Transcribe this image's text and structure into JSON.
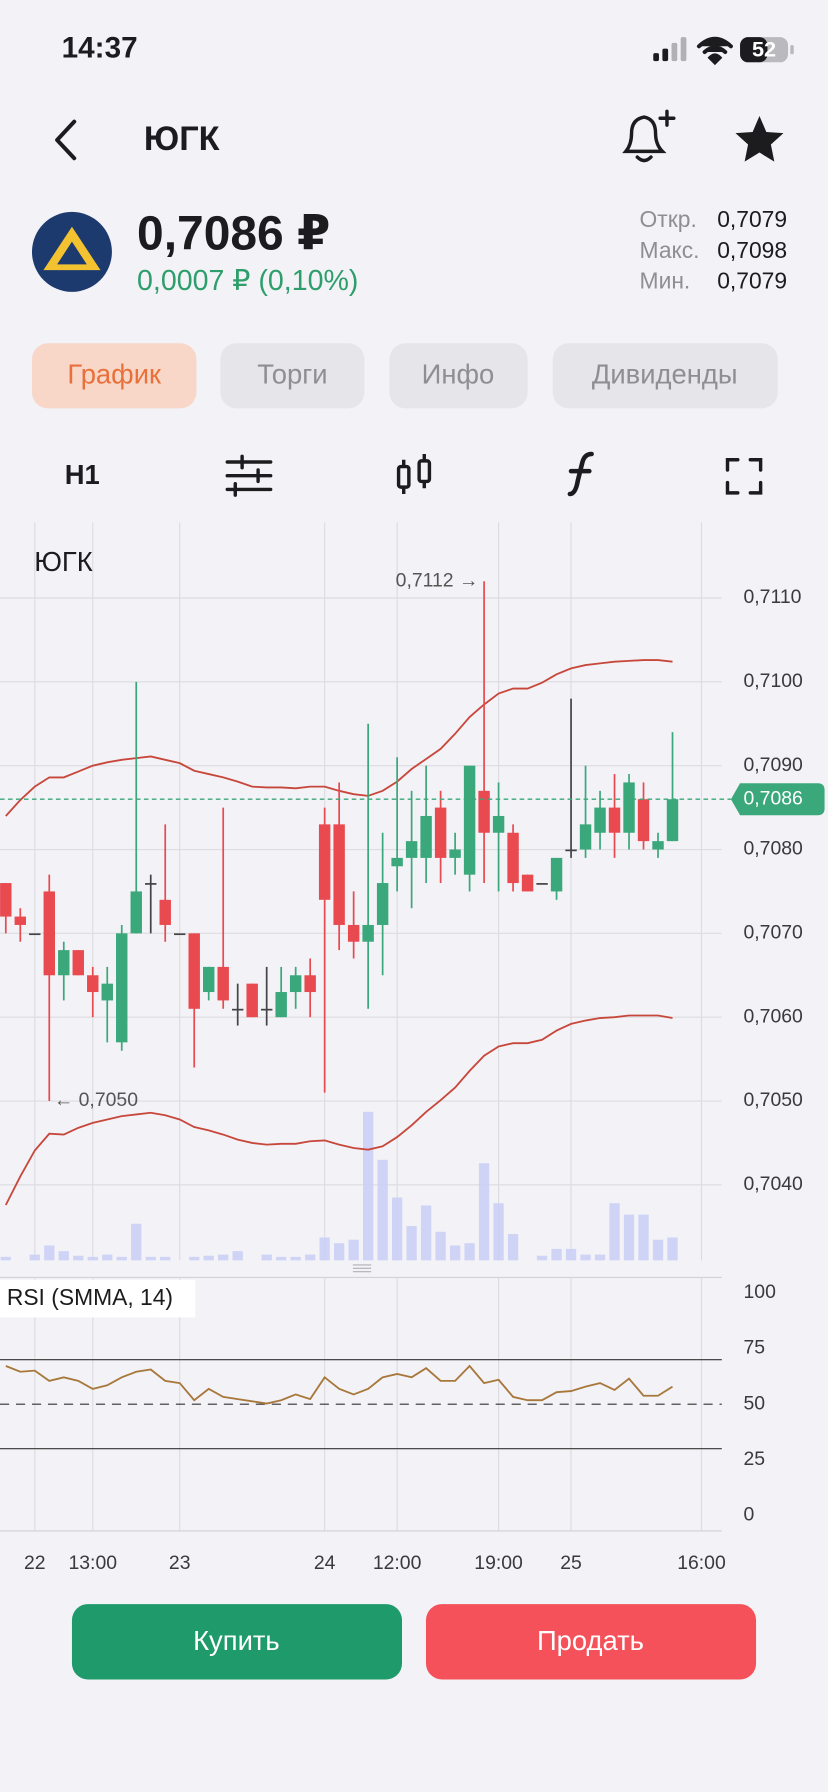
{
  "status_bar": {
    "time": "14:37",
    "battery": "52"
  },
  "header": {
    "title": "ЮГК"
  },
  "quote": {
    "price": "0,7086 ₽",
    "change": "0,0007 ₽ (0,10%)",
    "stats": [
      {
        "label": "Откр.",
        "value": "0,7079"
      },
      {
        "label": "Макс.",
        "value": "0,7098"
      },
      {
        "label": "Мин.",
        "value": "0,7079"
      }
    ]
  },
  "tabs": [
    "График",
    "Торги",
    "Инфо",
    "Дивиденды"
  ],
  "toolbar": {
    "interval": "H1"
  },
  "buttons": {
    "buy": "Купить",
    "sell": "Продать"
  },
  "chart_data": [
    {
      "type": "candlestick",
      "title": "ЮГК",
      "categories": [
        null,
        null,
        null,
        null,
        null,
        null,
        null,
        null,
        null,
        null,
        null,
        null,
        null,
        null,
        null,
        null,
        null,
        null,
        null,
        null,
        null,
        null,
        null,
        null,
        null,
        null,
        null,
        null,
        null,
        null,
        null,
        null,
        null,
        null,
        null,
        null,
        null,
        null,
        null,
        null,
        null,
        null,
        null,
        null,
        null,
        null,
        null
      ],
      "open": [
        0.7076,
        0.7072,
        0.707,
        0.7075,
        0.7065,
        0.7068,
        0.7065,
        0.7062,
        0.7057,
        0.707,
        0.7076,
        0.7074,
        0.707,
        0.707,
        0.7063,
        0.7066,
        0.7061,
        0.7064,
        0.7061,
        0.706,
        0.7063,
        0.7065,
        0.7083,
        0.7083,
        0.7071,
        0.7069,
        0.7071,
        0.7078,
        0.7079,
        0.7079,
        0.7085,
        0.7079,
        0.7077,
        0.7087,
        0.7082,
        0.7082,
        0.7077,
        0.7076,
        0.7075,
        0.708,
        0.708,
        0.7082,
        0.7085,
        0.7082,
        0.7086,
        0.708,
        0.7081
      ],
      "high": [
        0.7076,
        0.7073,
        0.707,
        0.7077,
        0.7069,
        0.7068,
        0.7066,
        0.7066,
        0.7071,
        0.71,
        0.7077,
        0.7083,
        0.707,
        0.707,
        0.7066,
        0.7085,
        0.7064,
        0.7064,
        0.7066,
        0.7066,
        0.7066,
        0.7067,
        0.7085,
        0.7088,
        0.7075,
        0.7095,
        0.7082,
        0.7091,
        0.7087,
        0.709,
        0.7087,
        0.7082,
        0.709,
        0.7112,
        0.7088,
        0.7083,
        0.7077,
        0.7076,
        0.7079,
        0.7098,
        0.709,
        0.7087,
        0.7089,
        0.7089,
        0.7088,
        0.7082,
        0.7094
      ],
      "low": [
        0.707,
        0.7069,
        0.707,
        0.705,
        0.7062,
        0.7065,
        0.706,
        0.7057,
        0.7056,
        0.707,
        0.707,
        0.7069,
        0.707,
        0.7054,
        0.7062,
        0.7061,
        0.7059,
        0.706,
        0.7059,
        0.706,
        0.7061,
        0.706,
        0.7051,
        0.7068,
        0.7067,
        0.7061,
        0.7065,
        0.7075,
        0.7073,
        0.7076,
        0.7076,
        0.7077,
        0.7075,
        0.7076,
        0.7075,
        0.7075,
        0.7075,
        0.7076,
        0.7074,
        0.7079,
        0.7079,
        0.708,
        0.7079,
        0.708,
        0.708,
        0.7079,
        0.7081
      ],
      "close": [
        0.7072,
        0.7071,
        0.707,
        0.7065,
        0.7068,
        0.7065,
        0.7063,
        0.7064,
        0.707,
        0.7075,
        0.7076,
        0.7071,
        0.707,
        0.7061,
        0.7066,
        0.7062,
        0.7061,
        0.706,
        0.7061,
        0.7063,
        0.7065,
        0.7063,
        0.7074,
        0.7071,
        0.7069,
        0.7071,
        0.7076,
        0.7079,
        0.7081,
        0.7084,
        0.7079,
        0.708,
        0.709,
        0.7082,
        0.7084,
        0.7076,
        0.7075,
        0.7076,
        0.7079,
        0.708,
        0.7083,
        0.7085,
        0.7082,
        0.7088,
        0.7081,
        0.7081,
        0.7086
      ],
      "up_color": "#3aa87a",
      "down_color": "#e84a4f",
      "flat_color": "#444444",
      "series": [
        {
          "color": "#c8473b",
          "values": [
            0.7084,
            0.70859,
            0.70875,
            0.70886,
            0.70886,
            0.70893,
            0.709,
            0.70904,
            0.70907,
            0.70909,
            0.70911,
            0.70907,
            0.70903,
            0.70894,
            0.7089,
            0.70886,
            0.70881,
            0.70875,
            0.70874,
            0.70874,
            0.70873,
            0.70875,
            0.70875,
            0.7087,
            0.70866,
            0.70864,
            0.7087,
            0.70881,
            0.70896,
            0.70908,
            0.7092,
            0.70938,
            0.70958,
            0.70973,
            0.70986,
            0.70992,
            0.70992,
            0.70999,
            0.71009,
            0.71016,
            0.7102,
            0.71022,
            0.71024,
            0.71025,
            0.71026,
            0.71026,
            0.71024
          ]
        },
        {
          "color": "#c8473b",
          "values": [
            0.70376,
            0.7041,
            0.70441,
            0.70461,
            0.7046,
            0.70468,
            0.70474,
            0.70478,
            0.70482,
            0.70484,
            0.70486,
            0.70483,
            0.70478,
            0.70469,
            0.70465,
            0.7046,
            0.70454,
            0.7045,
            0.70448,
            0.70449,
            0.70449,
            0.70452,
            0.70453,
            0.70448,
            0.70444,
            0.70442,
            0.70446,
            0.70457,
            0.70471,
            0.70487,
            0.70501,
            0.70516,
            0.70536,
            0.70554,
            0.70565,
            0.70569,
            0.70569,
            0.70573,
            0.70584,
            0.70592,
            0.70596,
            0.70599,
            0.706,
            0.70602,
            0.70602,
            0.70602,
            0.70599
          ]
        }
      ],
      "volume": {
        "color": "#c9cef5",
        "ylim": [
          0,
          150
        ],
        "values": [
          3,
          0,
          5,
          13,
          8,
          4,
          3,
          5,
          3,
          32,
          3,
          3,
          0,
          3,
          4,
          5,
          8,
          0,
          5,
          3,
          3,
          5,
          20,
          15,
          18,
          130,
          88,
          55,
          30,
          48,
          25,
          13,
          15,
          85,
          50,
          23,
          0,
          4,
          10,
          10,
          5,
          5,
          50,
          40,
          40,
          18,
          20
        ]
      },
      "xlim": [
        -0.4,
        49.4
      ],
      "ylim": [
        0.7031,
        0.7119
      ],
      "yticks": [
        {
          "value": 0.704,
          "label": "0,7040"
        },
        {
          "value": 0.705,
          "label": "0,7050"
        },
        {
          "value": 0.706,
          "label": "0,7060"
        },
        {
          "value": 0.707,
          "label": "0,7070"
        },
        {
          "value": 0.708,
          "label": "0,7080"
        },
        {
          "value": 0.709,
          "label": "0,7090"
        },
        {
          "value": 0.71,
          "label": "0,7100"
        },
        {
          "value": 0.711,
          "label": "0,7110"
        }
      ],
      "grid": true,
      "last_price": {
        "value": 0.7086,
        "label": "0,7086",
        "color": "#3aa87a"
      },
      "annotations": [
        {
          "value": 0.7112,
          "label": "0,7112 →"
        },
        {
          "value": 0.705,
          "label": "← 0,7050"
        }
      ]
    },
    {
      "type": "line",
      "title": "RSI (SMMA, 14)",
      "color": "#a8773a",
      "categories": [
        null,
        null,
        null,
        null,
        null,
        null,
        null,
        null,
        null,
        null,
        null,
        null,
        null,
        null,
        null,
        null,
        null,
        null,
        null,
        null,
        null,
        null,
        null,
        null,
        null,
        null,
        null,
        null,
        null,
        null,
        null,
        null,
        null,
        null,
        null,
        null,
        null,
        null,
        null,
        null,
        null,
        null,
        null,
        null,
        null,
        null,
        null
      ],
      "values": [
        67.2,
        64.6,
        65.1,
        60.5,
        62.1,
        60.5,
        56.9,
        58.5,
        62.1,
        64.6,
        65.6,
        60.5,
        59.5,
        51.8,
        56.9,
        53.3,
        52.3,
        51.3,
        50.3,
        51.8,
        54.4,
        52.3,
        62.1,
        56.9,
        54.4,
        56.9,
        62.1,
        63.6,
        62.1,
        66.2,
        60.5,
        60.5,
        67.2,
        59.5,
        61.0,
        53.3,
        51.8,
        51.8,
        55.4,
        55.9,
        57.9,
        59.5,
        56.4,
        61.5,
        53.8,
        53.8,
        57.9
      ],
      "levels": [
        30,
        70
      ],
      "midline": 50,
      "xlim": [
        -0.4,
        49.4
      ],
      "xticks": [
        {
          "value": 2,
          "label": "22"
        },
        {
          "value": 6,
          "label": "13:00"
        },
        {
          "value": 12,
          "label": "23"
        },
        {
          "value": 22,
          "label": "24"
        },
        {
          "value": 27,
          "label": "12:00"
        },
        {
          "value": 34,
          "label": "19:00"
        },
        {
          "value": 39,
          "label": "25"
        },
        {
          "value": 48,
          "label": "16:00"
        }
      ],
      "ylim": [
        -7,
        107
      ],
      "yticks": [
        0,
        25,
        50,
        75,
        100
      ]
    }
  ]
}
